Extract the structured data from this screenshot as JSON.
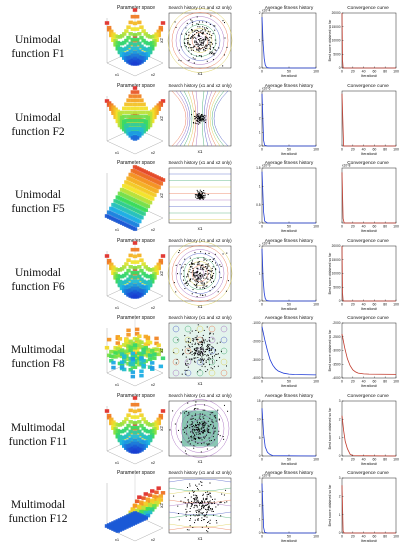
{
  "rows": [
    {
      "line1": "Unimodal",
      "line2": "function F1"
    },
    {
      "line1": "Unimodal",
      "line2": "function F2"
    },
    {
      "line1": "Unimodal",
      "line2": "function F5"
    },
    {
      "line1": "Unimodal",
      "line2": "function F6"
    },
    {
      "line1": "Multimodal",
      "line2": "function F8"
    },
    {
      "line1": "Multimodal",
      "line2": "function F11"
    },
    {
      "line1": "Multimodal",
      "line2": "function F12"
    }
  ],
  "panel_titles": {
    "parameter_space": "Parameter space",
    "search_history": "Search history (x1 and x2 only)",
    "average_fitness": "Average fitness history",
    "convergence": "Convergence curve"
  },
  "axis_labels": {
    "x1": "x1",
    "x2": "x2",
    "iteration": "Iteration#",
    "best_score": "Best score obtained so far",
    "x1_italic": "x",
    "x2_italic": "x"
  },
  "colors": {
    "fitness_line": "#1f3bd6",
    "convergence_line": "#c0392b",
    "contour": [
      "#3b4cc0",
      "#2ca25f",
      "#d7c83a",
      "#e8653a",
      "#9b59b6"
    ],
    "surface": [
      "#1a3bd1",
      "#1fb6e6",
      "#3ddc5a",
      "#f2e52c",
      "#f59a22",
      "#e0302b"
    ]
  },
  "chart_data": [
    {
      "type": "line",
      "row": "F1",
      "panel": "average_fitness",
      "xlabel": "Iteration#",
      "xlim": [
        0,
        100
      ],
      "ylim": [
        0,
        2
      ],
      "y_exponent": "x10^4",
      "x": [
        0,
        2,
        4,
        6,
        8,
        10,
        15,
        20,
        50,
        100
      ],
      "y": [
        1.85,
        0.9,
        0.35,
        0.12,
        0.04,
        0.01,
        0,
        0,
        0,
        0
      ],
      "xticks": [
        0,
        50,
        100
      ],
      "yticks": [
        0,
        1,
        2
      ]
    },
    {
      "type": "line",
      "row": "F1",
      "panel": "convergence",
      "xlabel": "Iteration#",
      "ylabel": "Best score obtained so far",
      "xlim": [
        0,
        100
      ],
      "ylim": [
        0,
        20000
      ],
      "xticks": [
        0,
        20,
        40,
        60,
        80,
        100
      ],
      "yticks": [
        0,
        5000,
        10000,
        15000,
        20000
      ],
      "x": [
        0,
        1,
        2,
        3,
        5,
        100
      ],
      "y": [
        20000,
        3000,
        200,
        20,
        0,
        0
      ]
    },
    {
      "type": "line",
      "row": "F2",
      "panel": "average_fitness",
      "xlabel": "Iteration#",
      "xlim": [
        0,
        100
      ],
      "ylim": [
        0,
        4
      ],
      "y_exponent": "x10^6",
      "xticks": [
        0,
        50,
        100
      ],
      "yticks": [
        0,
        1,
        2,
        3,
        4
      ],
      "x": [
        0,
        3,
        5,
        10,
        100
      ],
      "y": [
        3.8,
        0.4,
        0.05,
        0,
        0
      ]
    },
    {
      "type": "line",
      "row": "F2",
      "panel": "convergence",
      "xlabel": "Iteration#",
      "xlim": [
        0,
        100
      ],
      "ylim": [
        0,
        10
      ],
      "xticks": [
        0,
        20,
        40,
        60,
        80,
        100
      ],
      "x": [
        0,
        3,
        100
      ],
      "y": [
        9.5,
        0,
        0
      ]
    },
    {
      "type": "line",
      "row": "F5",
      "panel": "average_fitness",
      "xlabel": "Iteration#",
      "xlim": [
        0,
        100
      ],
      "ylim": [
        0,
        1.5
      ],
      "y_exponent": "x10^9",
      "xticks": [
        0,
        50,
        100
      ],
      "yticks": [
        0,
        0.5,
        1,
        1.5
      ],
      "x": [
        0,
        3,
        5,
        10,
        100
      ],
      "y": [
        1.4,
        0.3,
        0.05,
        0,
        0
      ]
    },
    {
      "type": "line",
      "row": "F5",
      "panel": "convergence",
      "xlabel": "Iteration#",
      "xlim": [
        0,
        100
      ],
      "ylim": [
        0,
        2.5
      ],
      "y_exponent": "x10^8",
      "xticks": [
        0,
        20,
        40,
        60,
        80,
        100
      ],
      "x": [
        0,
        2,
        4,
        100
      ],
      "y": [
        2.3,
        0.2,
        0,
        0
      ]
    },
    {
      "type": "line",
      "row": "F6",
      "panel": "average_fitness",
      "xlabel": "Iteration#",
      "xlim": [
        0,
        100
      ],
      "ylim": [
        0,
        2
      ],
      "y_exponent": "x10^4",
      "xticks": [
        0,
        50,
        100
      ],
      "yticks": [
        0,
        1,
        2
      ],
      "x": [
        0,
        2,
        4,
        6,
        8,
        10,
        15,
        100
      ],
      "y": [
        1.9,
        0.8,
        0.3,
        0.1,
        0.03,
        0.01,
        0,
        0
      ]
    },
    {
      "type": "line",
      "row": "F6",
      "panel": "convergence",
      "xlabel": "Iteration#",
      "ylabel": "Best score obtained so far",
      "xlim": [
        0,
        100
      ],
      "ylim": [
        0,
        20000
      ],
      "xticks": [
        0,
        20,
        40,
        60,
        80,
        100
      ],
      "yticks": [
        0,
        5000,
        10000,
        15000,
        20000
      ],
      "x": [
        0,
        1,
        2,
        3,
        5,
        100
      ],
      "y": [
        20000,
        3000,
        200,
        20,
        0,
        0
      ]
    },
    {
      "type": "line",
      "row": "F8",
      "panel": "average_fitness",
      "xlabel": "Iteration#",
      "xlim": [
        0,
        100
      ],
      "ylim": [
        -4000,
        -1000
      ],
      "xticks": [
        0,
        50,
        100
      ],
      "yticks": [
        -4000,
        -3000,
        -2000,
        -1000
      ],
      "x": [
        0,
        5,
        10,
        15,
        20,
        25,
        30,
        40,
        50,
        60,
        100
      ],
      "y": [
        -1200,
        -1900,
        -2500,
        -3000,
        -3300,
        -3500,
        -3620,
        -3740,
        -3790,
        -3810,
        -3830
      ]
    },
    {
      "type": "line",
      "row": "F8",
      "panel": "convergence",
      "xlabel": "Iteration#",
      "ylabel": "Best score obtained so far",
      "xlim": [
        0,
        100
      ],
      "ylim": [
        -4000,
        -2000
      ],
      "xticks": [
        0,
        20,
        40,
        60,
        80,
        100
      ],
      "yticks": [
        -4000,
        -3500,
        -3000,
        -2500,
        -2000
      ],
      "x": [
        0,
        5,
        10,
        15,
        20,
        25,
        30,
        40,
        50,
        100
      ],
      "y": [
        -2400,
        -2900,
        -3300,
        -3550,
        -3700,
        -3780,
        -3820,
        -3850,
        -3860,
        -3870
      ]
    },
    {
      "type": "line",
      "row": "F11",
      "panel": "average_fitness",
      "xlabel": "Iteration#",
      "xlim": [
        0,
        100
      ],
      "ylim": [
        0,
        15
      ],
      "xticks": [
        0,
        50,
        100
      ],
      "yticks": [
        0,
        5,
        10,
        15
      ],
      "x": [
        0,
        3,
        6,
        10,
        15,
        20,
        100
      ],
      "y": [
        13,
        6,
        2.5,
        1,
        0.4,
        0.1,
        0
      ]
    },
    {
      "type": "line",
      "row": "F11",
      "panel": "convergence",
      "xlabel": "Iteration#",
      "ylabel": "Best score obtained so far",
      "xlim": [
        0,
        100
      ],
      "ylim": [
        0,
        3
      ],
      "xticks": [
        0,
        20,
        40,
        60,
        80,
        100
      ],
      "yticks": [
        0,
        1,
        2,
        3
      ],
      "x": [
        0,
        3,
        6,
        10,
        15,
        20,
        100
      ],
      "y": [
        2.2,
        1.4,
        0.8,
        0.4,
        0.1,
        0.02,
        0
      ]
    },
    {
      "type": "line",
      "row": "F12",
      "panel": "average_fitness",
      "xlabel": "Iteration#",
      "xlim": [
        0,
        100
      ],
      "ylim": [
        0,
        4
      ],
      "y_exponent": "x10^8",
      "xticks": [
        0,
        50,
        100
      ],
      "yticks": [
        0,
        1,
        2,
        3,
        4
      ],
      "x": [
        0,
        3,
        5,
        10,
        100
      ],
      "y": [
        3.6,
        0.4,
        0.05,
        0,
        0
      ]
    },
    {
      "type": "line",
      "row": "F12",
      "panel": "convergence",
      "xlabel": "Iteration#",
      "ylabel": "Best score obtained so far",
      "xlim": [
        0,
        100
      ],
      "ylim": [
        0,
        3
      ],
      "xticks": [
        0,
        20,
        40,
        60,
        80,
        100
      ],
      "yticks": [
        0,
        1,
        2,
        3
      ],
      "x": [
        0,
        2,
        4,
        100
      ],
      "y": [
        2.6,
        0.1,
        0,
        0
      ]
    }
  ]
}
